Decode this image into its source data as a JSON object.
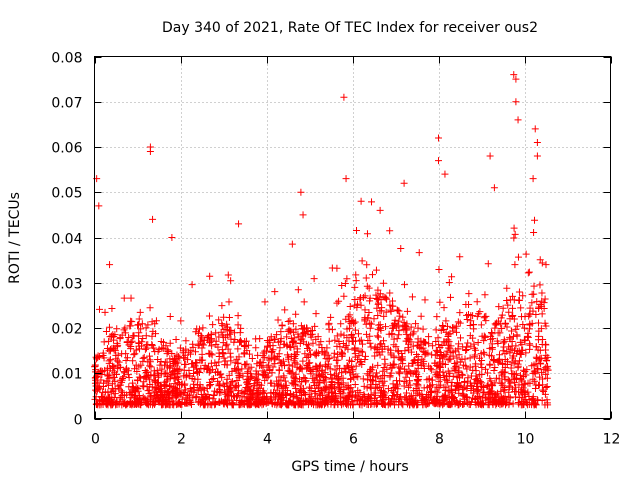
{
  "chart_data": {
    "type": "scatter",
    "title": "Day 340 of 2021, Rate Of TEC Index for receiver ous2",
    "xlabel": "GPS time / hours",
    "ylabel": "ROTI / TECUs",
    "xlim": [
      0,
      12
    ],
    "ylim": [
      0,
      0.08
    ],
    "xticks": [
      0,
      2,
      4,
      6,
      8,
      10,
      12
    ],
    "yticks": [
      0,
      0.01,
      0.02,
      0.03,
      0.04,
      0.05,
      0.06,
      0.07,
      0.08
    ],
    "xtick_labels": [
      "0",
      "2",
      "4",
      "6",
      "8",
      "10",
      "12"
    ],
    "ytick_labels": [
      "0",
      "0.01",
      "0.02",
      "0.03",
      "0.04",
      "0.05",
      "0.06",
      "0.07",
      "0.08"
    ],
    "grid": true,
    "marker": "plus",
    "color": "#ff0000",
    "series": [
      {
        "name": "ROTI",
        "x_range": [
          0,
          10.55
        ],
        "typical_range": [
          0.003,
          0.022
        ],
        "notable_points": [
          {
            "x": 0.05,
            "y": 0.053
          },
          {
            "x": 0.1,
            "y": 0.047
          },
          {
            "x": 0.35,
            "y": 0.034
          },
          {
            "x": 1.3,
            "y": 0.06
          },
          {
            "x": 1.3,
            "y": 0.059
          },
          {
            "x": 1.35,
            "y": 0.044
          },
          {
            "x": 1.8,
            "y": 0.04
          },
          {
            "x": 3.35,
            "y": 0.043
          },
          {
            "x": 4.8,
            "y": 0.05
          },
          {
            "x": 4.85,
            "y": 0.045
          },
          {
            "x": 5.8,
            "y": 0.071
          },
          {
            "x": 5.85,
            "y": 0.053
          },
          {
            "x": 6.2,
            "y": 0.048
          },
          {
            "x": 7.2,
            "y": 0.052
          },
          {
            "x": 8.0,
            "y": 0.062
          },
          {
            "x": 8.0,
            "y": 0.057
          },
          {
            "x": 8.15,
            "y": 0.054
          },
          {
            "x": 9.2,
            "y": 0.058
          },
          {
            "x": 9.3,
            "y": 0.051
          },
          {
            "x": 9.75,
            "y": 0.076
          },
          {
            "x": 9.8,
            "y": 0.075
          },
          {
            "x": 9.8,
            "y": 0.07
          },
          {
            "x": 9.85,
            "y": 0.066
          },
          {
            "x": 10.25,
            "y": 0.064
          },
          {
            "x": 10.3,
            "y": 0.061
          },
          {
            "x": 10.3,
            "y": 0.058
          },
          {
            "x": 10.2,
            "y": 0.053
          },
          {
            "x": 10.5,
            "y": 0.034
          }
        ]
      }
    ]
  }
}
